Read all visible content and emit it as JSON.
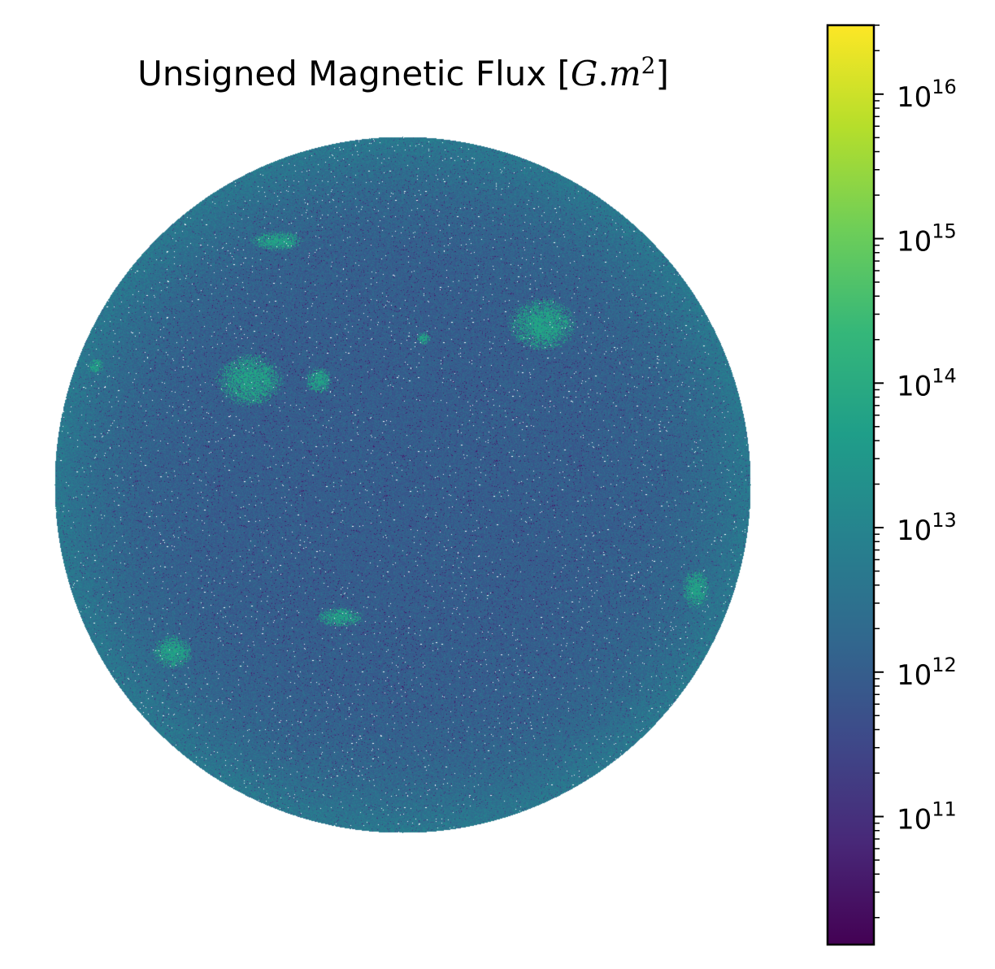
{
  "figure": {
    "title_prefix": "Unsigned Magnetic Flux [",
    "title_math_G": "G",
    "title_math_dot": ".",
    "title_math_m": "m",
    "title_math_exp": "2",
    "title_suffix": "]"
  },
  "chart_data": {
    "type": "heatmap",
    "title": "Unsigned Magnetic Flux [G.m^2]",
    "description": "Full-disk solar magnetogram of unsigned magnetic flux per pixel, log-scaled color",
    "colormap": "viridis",
    "color_scale": "log",
    "colorbar": {
      "placement": "right",
      "range": [
        13000000000.0,
        3e+16
      ],
      "ticks": [
        {
          "value": 100000000000.0,
          "base": "10",
          "exp": "11"
        },
        {
          "value": 1000000000000.0,
          "base": "10",
          "exp": "12"
        },
        {
          "value": 10000000000000.0,
          "base": "10",
          "exp": "13"
        },
        {
          "value": 100000000000000.0,
          "base": "10",
          "exp": "14"
        },
        {
          "value": 1000000000000000.0,
          "base": "10",
          "exp": "15"
        },
        {
          "value": 1e+16,
          "base": "10",
          "exp": "16"
        }
      ]
    },
    "background_level": 1000000000000.0,
    "limb_level": 5000000000000.0,
    "active_regions_level_range": [
      30000000000000.0,
      100000000000000.0
    ],
    "axes_visible": false,
    "grid": false
  },
  "colors": {
    "viridis_stops": [
      "#440154",
      "#482878",
      "#3e4989",
      "#31688e",
      "#26828e",
      "#1f9e89",
      "#35b779",
      "#6ece58",
      "#b5de2b",
      "#fde725"
    ]
  }
}
